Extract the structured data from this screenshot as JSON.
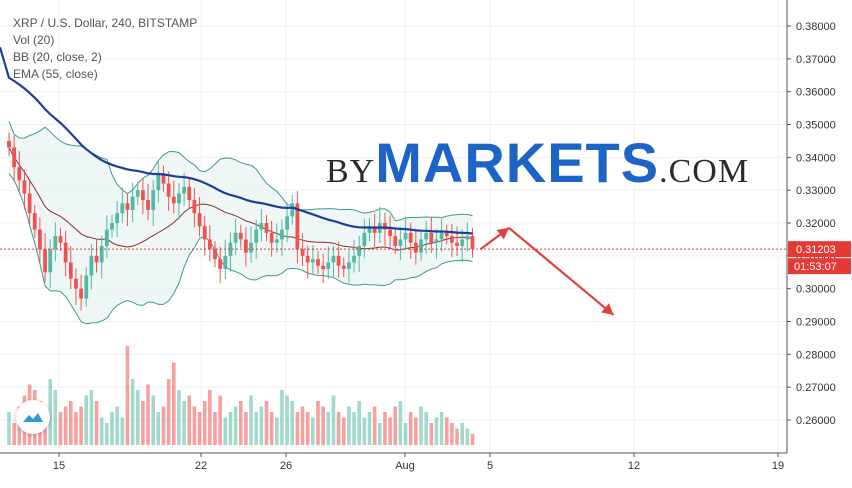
{
  "legend": {
    "symbol": "XRP / U.S. Dollar, 240, BITSTAMP",
    "vol": "Vol (20)",
    "bb": "BB (20, close, 2)",
    "ema": "EMA (55, close)"
  },
  "watermark": {
    "by": "BY",
    "markets": "MARKETS",
    "com": ".COM"
  },
  "price_label": {
    "price": "0.31203",
    "countdown": "01:53:07"
  },
  "icons": {
    "logo": "tradingview-logo-icon",
    "arrow": "forecast-arrow-icon"
  },
  "colors": {
    "up": "#53b9a4",
    "down": "#ef5350",
    "ema": "#1d3f9a",
    "bb_band": "#3f9a8e",
    "bb_basis": "#8b2e2e",
    "bb_fill": "#eaf5f3",
    "last_price": "#e53935",
    "arrow": "#e0403a",
    "brand": "#1e63c6"
  },
  "chart_data": {
    "type": "candlestick",
    "yticks": [
      "0.38000",
      "0.37000",
      "0.36000",
      "0.35000",
      "0.34000",
      "0.33000",
      "0.32000",
      "0.31000",
      "0.30000",
      "0.29000",
      "0.28000",
      "0.27000",
      "0.26000"
    ],
    "ylim": [
      0.251,
      0.3865
    ],
    "xtick_labels": [
      "15",
      "22",
      "26",
      "Aug",
      "5",
      "12",
      "19"
    ],
    "close": [
      0.343,
      0.337,
      0.333,
      0.329,
      0.323,
      0.318,
      0.312,
      0.305,
      0.312,
      0.316,
      0.314,
      0.308,
      0.303,
      0.3,
      0.297,
      0.304,
      0.31,
      0.308,
      0.313,
      0.318,
      0.32,
      0.323,
      0.326,
      0.324,
      0.328,
      0.33,
      0.327,
      0.324,
      0.33,
      0.335,
      0.332,
      0.328,
      0.326,
      0.329,
      0.331,
      0.327,
      0.323,
      0.319,
      0.315,
      0.312,
      0.309,
      0.306,
      0.31,
      0.314,
      0.317,
      0.315,
      0.311,
      0.314,
      0.318,
      0.32,
      0.317,
      0.314,
      0.315,
      0.318,
      0.322,
      0.326,
      0.312,
      0.31,
      0.308,
      0.309,
      0.307,
      0.306,
      0.308,
      0.31,
      0.307,
      0.306,
      0.308,
      0.31,
      0.313,
      0.317,
      0.319,
      0.317,
      0.32,
      0.318,
      0.316,
      0.313,
      0.315,
      0.317,
      0.314,
      0.311,
      0.315,
      0.317,
      0.314,
      0.315,
      0.317,
      0.316,
      0.314,
      0.313,
      0.315,
      0.316,
      0.312
    ],
    "volume": [
      0.3,
      0.2,
      0.35,
      0.45,
      0.55,
      0.5,
      0.4,
      0.3,
      0.6,
      0.5,
      0.3,
      0.35,
      0.4,
      0.3,
      0.35,
      0.45,
      0.5,
      0.4,
      0.25,
      0.2,
      0.3,
      0.35,
      0.25,
      0.9,
      0.6,
      0.5,
      0.4,
      0.55,
      0.45,
      0.3,
      0.35,
      0.6,
      0.75,
      0.5,
      0.4,
      0.45,
      0.35,
      0.3,
      0.4,
      0.5,
      0.3,
      0.45,
      0.25,
      0.3,
      0.35,
      0.4,
      0.3,
      0.45,
      0.3,
      0.35,
      0.4,
      0.3,
      0.25,
      0.5,
      0.45,
      0.4,
      0.3,
      0.35,
      0.3,
      0.25,
      0.4,
      0.35,
      0.3,
      0.45,
      0.3,
      0.25,
      0.35,
      0.3,
      0.4,
      0.25,
      0.3,
      0.35,
      0.2,
      0.3,
      0.25,
      0.35,
      0.4,
      0.2,
      0.3,
      0.25,
      0.35,
      0.3,
      0.2,
      0.25,
      0.3,
      0.25,
      0.2,
      0.15,
      0.2,
      0.15,
      0.1
    ],
    "forecast_arrow": {
      "points": [
        [
          0.312,
          0
        ],
        [
          0.3185,
          3
        ],
        [
          0.292,
          14
        ]
      ]
    },
    "last_price": 0.31203
  }
}
